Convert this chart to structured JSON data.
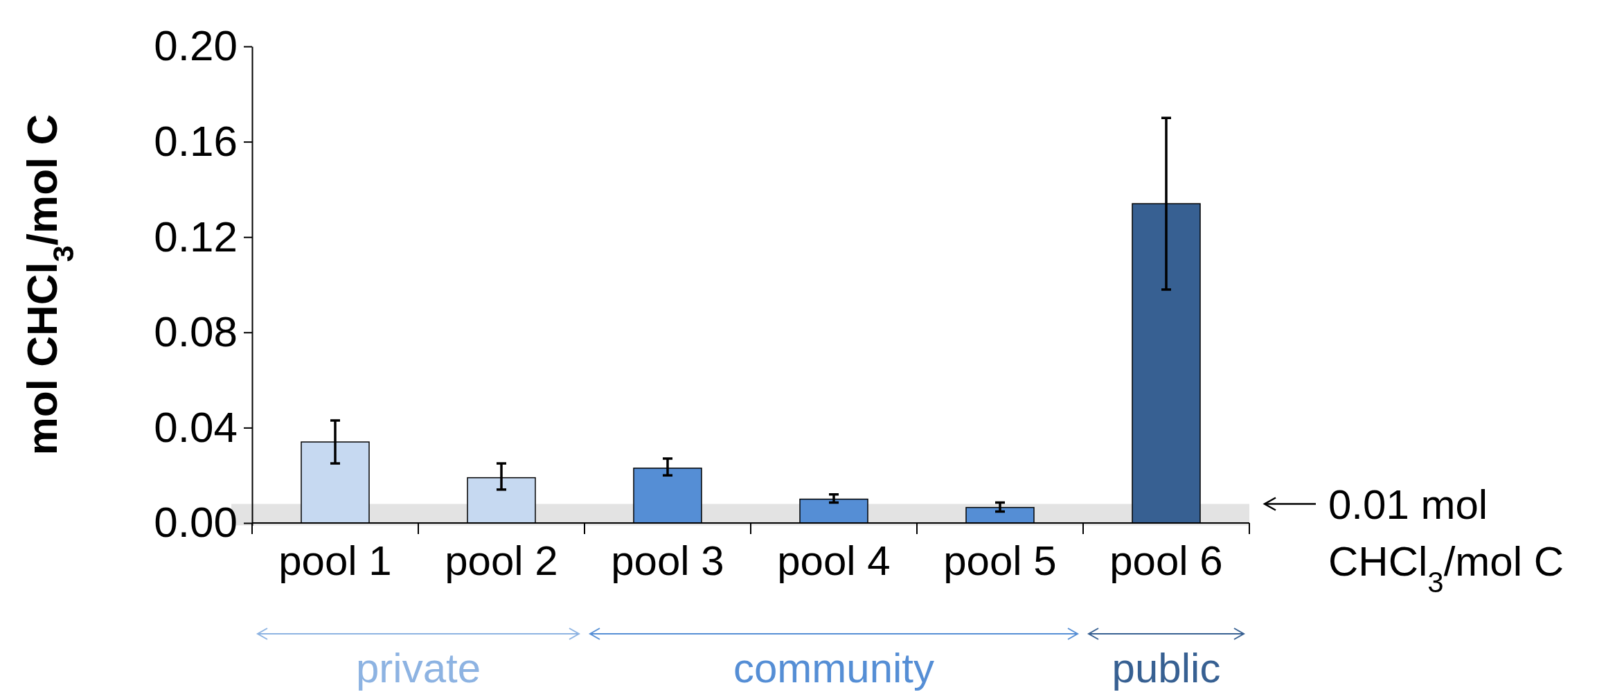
{
  "chart_data": {
    "type": "bar",
    "ylabel": "mol CHCl$_{3}$/mol C",
    "categories": [
      "pool 1",
      "pool 2",
      "pool 3",
      "pool 4",
      "pool 5",
      "pool 6"
    ],
    "values": [
      0.034,
      0.019,
      0.023,
      0.01,
      0.0065,
      0.134
    ],
    "colors": [
      "#c6d9f1",
      "#c6d9f1",
      "#558ed5",
      "#558ed5",
      "#558ed5",
      "#376092"
    ],
    "errors": [
      [
        0.025,
        0.043
      ],
      [
        0.014,
        0.025
      ],
      [
        0.02,
        0.027
      ],
      [
        0.0086,
        0.012
      ],
      [
        0.0048,
        0.0086
      ],
      [
        0.098,
        0.17
      ]
    ],
    "ylim": [
      -0.001,
      0.2
    ],
    "yticks": [
      {
        "value": 0,
        "label": "0.00"
      },
      0.04,
      0.08,
      0.12,
      0.16,
      {
        "value": 0.2,
        "label": "0.20"
      }
    ],
    "bands": [
      {
        "axis": "y",
        "from": -0.001,
        "to": 0.008,
        "label": "0.01 mol CHCl$_{3}$/mol C",
        "color": "#e3e3e3"
      }
    ],
    "annotations": [
      "private",
      "community",
      "public"
    ],
    "grid": false
  }
}
